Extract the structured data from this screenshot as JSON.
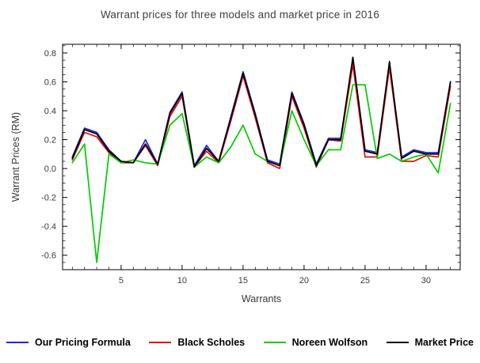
{
  "title": "Warrant prices for three models and market price in 2016",
  "chart_data": {
    "type": "line",
    "title": "Warrant prices for three models and market price in 2016",
    "xlabel": "Warrants",
    "ylabel": "Warrant Prices (RM)",
    "x": [
      1,
      2,
      3,
      4,
      5,
      6,
      7,
      8,
      9,
      10,
      11,
      12,
      13,
      14,
      15,
      16,
      17,
      18,
      19,
      20,
      21,
      22,
      23,
      24,
      25,
      26,
      27,
      28,
      29,
      30,
      31,
      32
    ],
    "series": [
      {
        "name": "Our Pricing Formula",
        "color": "#2222dd",
        "values": [
          0.08,
          0.28,
          0.25,
          0.13,
          0.05,
          0.04,
          0.2,
          0.03,
          0.39,
          0.53,
          0.02,
          0.16,
          0.05,
          0.36,
          0.67,
          0.38,
          0.06,
          0.03,
          0.53,
          0.31,
          0.03,
          0.21,
          0.21,
          0.75,
          0.13,
          0.11,
          0.73,
          0.08,
          0.13,
          0.11,
          0.11,
          0.6
        ]
      },
      {
        "name": "Black Scholes",
        "color": "#dd1111",
        "values": [
          0.06,
          0.25,
          0.22,
          0.11,
          0.04,
          0.04,
          0.16,
          0.02,
          0.36,
          0.5,
          0.01,
          0.12,
          0.04,
          0.33,
          0.64,
          0.35,
          0.04,
          0.0,
          0.5,
          0.28,
          0.01,
          0.2,
          0.19,
          0.72,
          0.08,
          0.08,
          0.7,
          0.05,
          0.05,
          0.09,
          0.08,
          0.57
        ]
      },
      {
        "name": "Noreen Wolfson",
        "color": "#00cc00",
        "values": [
          0.04,
          0.17,
          -0.65,
          0.1,
          0.04,
          0.06,
          0.04,
          0.03,
          0.3,
          0.38,
          0.01,
          0.08,
          0.04,
          0.15,
          0.3,
          0.1,
          0.05,
          0.02,
          0.4,
          0.2,
          0.02,
          0.13,
          0.13,
          0.58,
          0.58,
          0.07,
          0.1,
          0.05,
          0.08,
          0.1,
          -0.03,
          0.45
        ]
      },
      {
        "name": "Market Price",
        "color": "#000000",
        "values": [
          0.07,
          0.27,
          0.24,
          0.12,
          0.05,
          0.04,
          0.17,
          0.03,
          0.38,
          0.52,
          0.01,
          0.14,
          0.05,
          0.35,
          0.66,
          0.37,
          0.05,
          0.02,
          0.52,
          0.3,
          0.02,
          0.2,
          0.2,
          0.77,
          0.12,
          0.1,
          0.74,
          0.07,
          0.12,
          0.1,
          0.1,
          0.6
        ]
      }
    ],
    "x_ticks": [
      5,
      10,
      15,
      20,
      25,
      30
    ],
    "y_ticks": [
      "-0.6",
      "-0.4",
      "-0.2",
      "0.0",
      "0.2",
      "0.4",
      "0.6",
      "0.8"
    ],
    "xlim": [
      0.2,
      32.8
    ],
    "ylim": [
      -0.7,
      0.86
    ],
    "grid": false,
    "legend_position": "bottom"
  }
}
